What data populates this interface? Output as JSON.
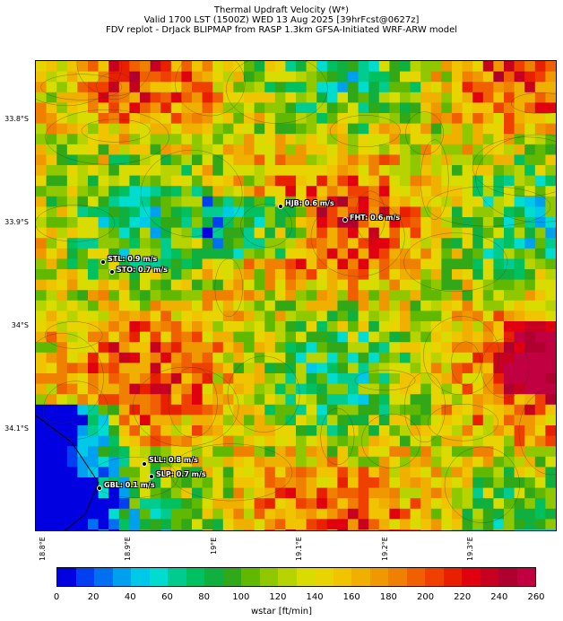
{
  "title": {
    "line1": "Thermal Updraft Velocity (W*)",
    "line2": "Valid 1700 LST (1500Z) WED 13 Aug 2025 [39hrFcst@0627z]",
    "line3": "FDV replot - DrJack BLIPMAP from RASP 1.3km GFSA-Initiated WRF-ARW model"
  },
  "axes": {
    "lat_labels": [
      "33.8°S",
      "33.9°S",
      "34°S",
      "34.1°S"
    ],
    "lon_labels": [
      "18.8°E",
      "18.9°E",
      "19°E",
      "19.1°E",
      "19.2°E",
      "19.3°E"
    ]
  },
  "stations": [
    {
      "label": "HJB: 0.6 m/s"
    },
    {
      "label": "FHT: 0.6 m/s"
    },
    {
      "label": "STL: 0.9 m/s"
    },
    {
      "label": "STO: 0.7 m/s"
    },
    {
      "label": "SLL: 0.8 m/s"
    },
    {
      "label": "SLP: 0.7 m/s"
    },
    {
      "label": "GBL: 0.1 m/s"
    }
  ],
  "colorbar": {
    "label": "wstar [ft/min]",
    "ticks": [
      "0",
      "20",
      "40",
      "60",
      "80",
      "100",
      "120",
      "140",
      "160",
      "180",
      "200",
      "220",
      "240",
      "260"
    ],
    "colors": [
      "#0000e0",
      "#0040f0",
      "#0070f0",
      "#00a0f0",
      "#00c8e8",
      "#00dcd0",
      "#00cc90",
      "#00c060",
      "#10b040",
      "#30a818",
      "#60b800",
      "#90c800",
      "#b8d400",
      "#d8dc00",
      "#e8d400",
      "#f0c400",
      "#f0b000",
      "#f09800",
      "#f08000",
      "#f06000",
      "#f04000",
      "#e82000",
      "#e00010",
      "#c80020",
      "#b00030",
      "#c00040"
    ]
  }
}
